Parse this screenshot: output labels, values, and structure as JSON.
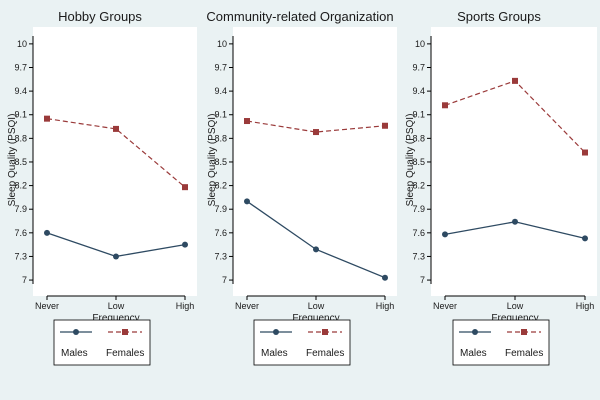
{
  "chart_data": [
    {
      "type": "line",
      "title": "Hobby Groups",
      "xlabel": "Frequency",
      "ylabel": "Sleep Quality (PSQI)",
      "categories": [
        "Never",
        "Low",
        "High"
      ],
      "ylim": [
        6.95,
        10.1
      ],
      "yticks": [
        "7",
        "7.3",
        "7.6",
        "7.9",
        "8.2",
        "8.5",
        "8.8",
        "9.1",
        "9.4",
        "9.7",
        "10"
      ],
      "series": [
        {
          "name": "Males",
          "values": [
            7.6,
            7.3,
            7.45
          ]
        },
        {
          "name": "Females",
          "values": [
            9.05,
            8.92,
            8.18
          ]
        }
      ]
    },
    {
      "type": "line",
      "title": "Community-related Organization",
      "xlabel": "Frequency",
      "ylabel": "Sleep Quality (PSQI)",
      "categories": [
        "Never",
        "Low",
        "High"
      ],
      "ylim": [
        6.95,
        10.1
      ],
      "yticks": [
        "7",
        "7.3",
        "7.6",
        "7.9",
        "8.2",
        "8.5",
        "8.8",
        "9.1",
        "9.4",
        "9.7",
        "10"
      ],
      "series": [
        {
          "name": "Males",
          "values": [
            8.0,
            7.39,
            7.03
          ]
        },
        {
          "name": "Females",
          "values": [
            9.02,
            8.88,
            8.96
          ]
        }
      ]
    },
    {
      "type": "line",
      "title": "Sports Groups",
      "xlabel": "Frequency",
      "ylabel": "Sleep Quality (PSQI)",
      "categories": [
        "Never",
        "Low",
        "High"
      ],
      "ylim": [
        6.95,
        10.1
      ],
      "yticks": [
        "7",
        "7.3",
        "7.6",
        "7.9",
        "8.2",
        "8.5",
        "8.8",
        "9.1",
        "9.4",
        "9.7",
        "10"
      ],
      "series": [
        {
          "name": "Males",
          "values": [
            7.58,
            7.74,
            7.53
          ]
        },
        {
          "name": "Females",
          "values": [
            9.22,
            9.53,
            8.62
          ]
        }
      ]
    }
  ],
  "colors": {
    "males": "#2e4a62",
    "females": "#9a3a3a",
    "plot_bg": "#ffffff",
    "outer_bg": "#eaf2f3"
  }
}
